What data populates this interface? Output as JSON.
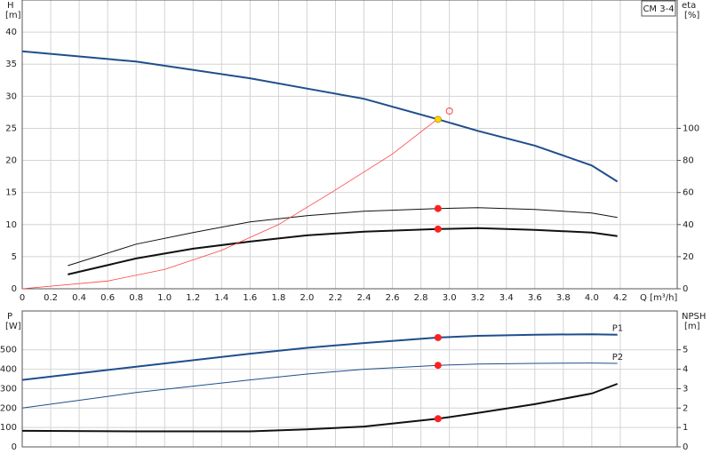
{
  "chart_data": [
    {
      "type": "line",
      "title": "CM 3-4",
      "ylabel": "H",
      "yunit": "[m]",
      "y2label": "eta",
      "y2unit": "[%]",
      "xlabel": "Q [m³/h]",
      "xlim": [
        0,
        4.6
      ],
      "xticks": [
        0,
        0.2,
        0.4,
        0.6,
        0.8,
        {
          "value": 1,
          "label": "1.0"
        },
        1.2,
        1.4,
        1.6,
        1.8,
        {
          "value": 2,
          "label": "2.0"
        },
        2.2,
        2.4,
        2.6,
        2.8,
        {
          "value": 3,
          "label": "3.0"
        },
        3.2,
        3.4,
        3.6,
        3.8,
        {
          "value": 4,
          "label": "4.0"
        },
        4.2
      ],
      "ylim": [
        0,
        45
      ],
      "yticks": [
        0,
        5,
        10,
        15,
        20,
        25,
        30,
        35,
        40
      ],
      "y2lim": [
        0,
        180
      ],
      "y2ticks": [
        0,
        20,
        40,
        60,
        80,
        100
      ],
      "grid": true,
      "series": [
        {
          "color": "#1f4e8c",
          "width": 2,
          "x": [
            0,
            0.8,
            1.6,
            2.0,
            2.4,
            2.92,
            3.2,
            3.6,
            4.0,
            4.18
          ],
          "values": [
            37,
            35.4,
            32.8,
            31.2,
            29.6,
            26.4,
            24.6,
            22.3,
            19.2,
            16.7
          ]
        },
        {
          "color": "#111111",
          "width": 1,
          "axis": "y2",
          "x": [
            0.32,
            0.8,
            1.2,
            1.6,
            2.0,
            2.4,
            2.92,
            3.2,
            3.6,
            4.0,
            4.18
          ],
          "values": [
            14.4,
            27.8,
            35,
            41.7,
            45.6,
            48.3,
            50,
            50.5,
            49.4,
            47.2,
            44.4
          ]
        },
        {
          "color": "#111111",
          "width": 2,
          "axis": "y2",
          "x": [
            0.32,
            0.8,
            1.2,
            1.6,
            2.0,
            2.4,
            2.92,
            3.2,
            3.6,
            4.0,
            4.18
          ],
          "values": [
            8.9,
            18.9,
            25,
            29.4,
            33.3,
            35.6,
            37.2,
            37.8,
            36.7,
            35,
            32.8
          ]
        },
        {
          "color": "#ff4040",
          "width": 0.8,
          "x": [
            0,
            0.6,
            1.0,
            1.4,
            1.8,
            2.2,
            2.6,
            2.92
          ],
          "values": [
            0,
            1.2,
            3,
            6,
            10,
            15.4,
            21,
            26.5
          ]
        }
      ],
      "points": [
        {
          "x": 2.92,
          "y": 26.4,
          "color": "#ffd700"
        },
        {
          "x": 2.92,
          "y": 50,
          "color": "#ff2020",
          "axis": "y2"
        },
        {
          "x": 2.92,
          "y": 37.2,
          "color": "#ff2020",
          "axis": "y2"
        },
        {
          "x": 3.0,
          "y": 27.7,
          "color": "#ff4040",
          "hollow": true
        }
      ]
    },
    {
      "type": "line",
      "ylabel": "P",
      "yunit": "[W]",
      "y2label": "NPSH",
      "y2unit": "[m]",
      "xlim": [
        0,
        4.6
      ],
      "xticks": [
        0,
        0.2,
        0.4,
        0.6,
        0.8,
        1,
        1.2,
        1.4,
        1.6,
        1.8,
        2,
        2.2,
        2.4,
        2.6,
        2.8,
        3,
        3.2,
        3.4,
        3.6,
        3.8,
        4,
        4.2
      ],
      "ylim": [
        0,
        700
      ],
      "yticks": [
        0,
        100,
        200,
        300,
        400,
        500
      ],
      "y2lim": [
        0,
        7
      ],
      "y2ticks": [
        0,
        1,
        2,
        3,
        4,
        5
      ],
      "grid": true,
      "series": [
        {
          "name": "P1",
          "color": "#1f4e8c",
          "width": 2,
          "x": [
            0,
            0.8,
            1.6,
            2.0,
            2.4,
            2.92,
            3.2,
            3.6,
            4.0,
            4.18
          ],
          "values": [
            345,
            413,
            480,
            510,
            535,
            563,
            572,
            578,
            580,
            578
          ]
        },
        {
          "name": "P2",
          "color": "#1f4e8c",
          "width": 1,
          "x": [
            0,
            0.8,
            1.6,
            2.0,
            2.4,
            2.92,
            3.2,
            3.6,
            4.0,
            4.18
          ],
          "values": [
            200,
            280,
            345,
            375,
            400,
            420,
            427,
            430,
            432,
            430
          ]
        },
        {
          "color": "#111111",
          "width": 2,
          "axis": "y2",
          "x": [
            0,
            0.8,
            1.6,
            2.0,
            2.4,
            2.92,
            3.2,
            3.6,
            4.0,
            4.18
          ],
          "values": [
            0.83,
            0.8,
            0.8,
            0.9,
            1.05,
            1.45,
            1.75,
            2.2,
            2.75,
            3.25
          ]
        }
      ],
      "points": [
        {
          "x": 2.92,
          "y": 563,
          "color": "#ff2020"
        },
        {
          "x": 2.92,
          "y": 420,
          "color": "#ff2020"
        },
        {
          "x": 2.92,
          "y": 1.45,
          "color": "#ff2020",
          "axis": "y2"
        }
      ]
    }
  ]
}
